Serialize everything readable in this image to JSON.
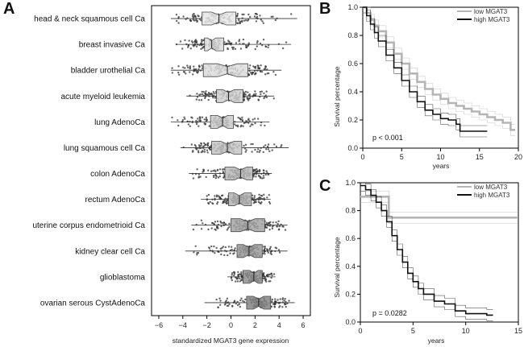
{
  "chart_data": [
    {
      "type": "box",
      "panel": "A",
      "xlabel": "standardized MGAT3 gene expression",
      "xlim": [
        -6.6,
        6.6
      ],
      "xticks": [
        -6,
        -4,
        -2,
        0,
        2,
        4,
        6
      ],
      "categories": [
        "head & neck squamous cell Ca",
        "breast invasive Ca",
        "bladder urothelial Ca",
        "acute myeloid leukemia",
        "lung AdenoCa",
        "lung squamous cell Ca",
        "colon AdenoCa",
        "rectum AdenoCa",
        "uterine corpus endometrioid Ca",
        "kidney clear cell Ca",
        "glioblastoma",
        "ovarian serous CystAdenoCa"
      ],
      "boxes": [
        {
          "q1": -2.4,
          "median": -1.0,
          "q3": 0.4,
          "lo": -5.0,
          "hi": 5.5,
          "fill": "#e6e6e6"
        },
        {
          "q1": -2.2,
          "median": -1.6,
          "q3": -0.6,
          "lo": -4.6,
          "hi": 5.0,
          "fill": "#dcdcdc"
        },
        {
          "q1": -2.3,
          "median": -0.3,
          "q3": 1.4,
          "lo": -5.0,
          "hi": 4.2,
          "fill": "#dcdcdc"
        },
        {
          "q1": -1.2,
          "median": -0.2,
          "q3": 1.0,
          "lo": -3.7,
          "hi": 3.6,
          "fill": "#cfcfcf"
        },
        {
          "q1": -1.7,
          "median": -0.7,
          "q3": 0.2,
          "lo": -5.0,
          "hi": 3.2,
          "fill": "#cbcbcb"
        },
        {
          "q1": -1.6,
          "median": -0.3,
          "q3": 0.9,
          "lo": -4.2,
          "hi": 4.8,
          "fill": "#c6c6c6"
        },
        {
          "q1": -0.5,
          "median": 0.8,
          "q3": 1.8,
          "lo": -3.5,
          "hi": 3.4,
          "fill": "#b9b9b9"
        },
        {
          "q1": -0.2,
          "median": 0.7,
          "q3": 1.7,
          "lo": -2.5,
          "hi": 3.3,
          "fill": "#b3b3b3"
        },
        {
          "q1": 0.0,
          "median": 1.4,
          "q3": 2.8,
          "lo": -3.3,
          "hi": 4.7,
          "fill": "#a4a4a4"
        },
        {
          "q1": 0.5,
          "median": 1.5,
          "q3": 2.6,
          "lo": -3.8,
          "hi": 4.7,
          "fill": "#9a9a9a"
        },
        {
          "q1": 1.0,
          "median": 1.9,
          "q3": 2.6,
          "lo": -0.3,
          "hi": 3.7,
          "fill": "#8f8f8f"
        },
        {
          "q1": 1.3,
          "median": 2.3,
          "q3": 3.3,
          "lo": -2.2,
          "hi": 5.3,
          "fill": "#858585"
        }
      ]
    },
    {
      "type": "line",
      "panel": "B",
      "xlabel": "years",
      "ylabel": "Survival percentage",
      "xlim": [
        0,
        20
      ],
      "ylim": [
        0,
        1.0
      ],
      "xticks": [
        0,
        5,
        10,
        15,
        20
      ],
      "yticks": [
        0.0,
        0.2,
        0.4,
        0.6,
        0.8,
        1.0
      ],
      "ytick_labels": [
        "0.0",
        "0.2",
        "0.4",
        "0.6",
        "0.8",
        "1.0"
      ],
      "legend": [
        "low MGAT3",
        "high MGAT3"
      ],
      "annotation": "p < 0.001",
      "series": [
        {
          "name": "low MGAT3",
          "color": "#b5b5b5",
          "x": [
            0,
            0.5,
            1,
            1.5,
            2,
            3,
            4,
            5,
            6,
            7,
            8,
            9,
            10,
            11,
            12,
            13,
            14,
            15,
            16,
            17,
            18,
            19,
            19.6
          ],
          "y": [
            1.0,
            0.96,
            0.91,
            0.87,
            0.83,
            0.75,
            0.67,
            0.6,
            0.53,
            0.47,
            0.42,
            0.38,
            0.35,
            0.32,
            0.3,
            0.28,
            0.26,
            0.24,
            0.22,
            0.2,
            0.18,
            0.13,
            0.13
          ]
        },
        {
          "name": "high MGAT3",
          "color": "#111111",
          "x": [
            0,
            0.5,
            1,
            1.5,
            2,
            3,
            4,
            5,
            6,
            7,
            8,
            9,
            10,
            11,
            12,
            12.5,
            13,
            14,
            15,
            16
          ],
          "y": [
            1.0,
            0.94,
            0.88,
            0.82,
            0.76,
            0.66,
            0.57,
            0.48,
            0.4,
            0.33,
            0.27,
            0.24,
            0.21,
            0.2,
            0.17,
            0.12,
            0.12,
            0.12,
            0.12,
            0.12
          ]
        }
      ]
    },
    {
      "type": "line",
      "panel": "C",
      "xlabel": "years",
      "ylabel": "Survival percentage",
      "xlim": [
        0,
        15
      ],
      "ylim": [
        0,
        1.0
      ],
      "xticks": [
        0,
        5,
        10,
        15
      ],
      "yticks": [
        0.0,
        0.2,
        0.4,
        0.6,
        0.8,
        1.0
      ],
      "ytick_labels": [
        "0.0",
        "0.2",
        "0.4",
        "0.6",
        "0.8",
        "1.0"
      ],
      "legend": [
        "low MGAT3",
        "high MGAT3"
      ],
      "annotation": "p = 0.0282",
      "series": [
        {
          "name": "low MGAT3",
          "color": "#b5b5b5",
          "x": [
            0,
            1.3,
            1.3,
            2.7,
            2.7,
            14.9
          ],
          "y": [
            0.9,
            0.9,
            0.9,
            0.9,
            0.75,
            0.75
          ]
        },
        {
          "name": "high MGAT3",
          "color": "#111111",
          "x": [
            0,
            0.5,
            1,
            1.5,
            2,
            2.5,
            3,
            3.5,
            4,
            4.5,
            5,
            5.5,
            6,
            7,
            8,
            9,
            10,
            11,
            12,
            12.6
          ],
          "y": [
            0.98,
            0.95,
            0.91,
            0.86,
            0.8,
            0.72,
            0.62,
            0.52,
            0.43,
            0.35,
            0.29,
            0.24,
            0.2,
            0.15,
            0.13,
            0.08,
            0.06,
            0.06,
            0.05,
            0.05
          ]
        }
      ]
    }
  ]
}
